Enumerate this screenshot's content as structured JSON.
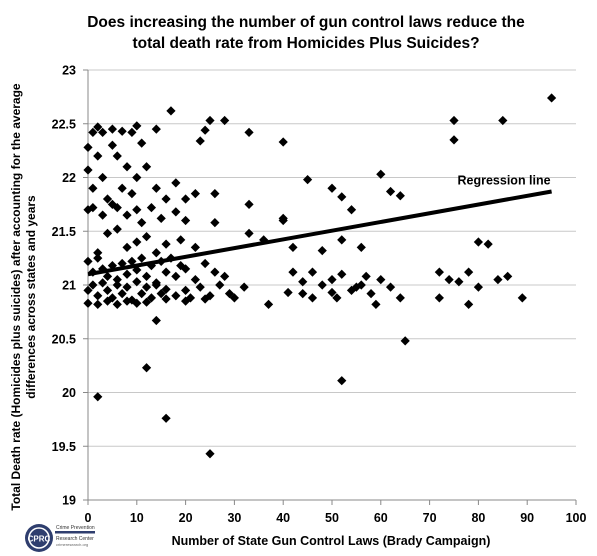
{
  "chart_data": {
    "type": "scatter",
    "title_line1": "Does increasing the number of gun control laws reduce the",
    "title_line2": "total death rate from Homicides Plus Suicides?",
    "xlabel": "Number of State Gun Control Laws (Brady Campaign)",
    "ylabel_line1": "Total Death rate (Homicides plus suicides) after accounting for the average",
    "ylabel_line2": "differences across states and years",
    "xlim": [
      0,
      100
    ],
    "ylim": [
      19,
      23
    ],
    "x_ticks": [
      0,
      10,
      20,
      30,
      40,
      50,
      60,
      70,
      80,
      90,
      100
    ],
    "y_ticks": [
      19,
      19.5,
      20,
      20.5,
      21,
      21.5,
      22,
      22.5,
      23
    ],
    "y_tick_labels": [
      "19",
      "19.5",
      "20",
      "20.5",
      "21",
      "21.5",
      "22",
      "22.5",
      "23"
    ],
    "grid": "horizontal",
    "marker_color": "#000000",
    "regression": {
      "label": "Regression line",
      "x": [
        0,
        95
      ],
      "y": [
        21.1,
        21.87
      ]
    },
    "points": [
      [
        2,
        19.96
      ],
      [
        12,
        20.23
      ],
      [
        14,
        20.67
      ],
      [
        16,
        19.76
      ],
      [
        25,
        19.43
      ],
      [
        52,
        20.11
      ],
      [
        65,
        20.48
      ],
      [
        0,
        22.28
      ],
      [
        1,
        22.42
      ],
      [
        2,
        22.47
      ],
      [
        3,
        22.42
      ],
      [
        5,
        22.45
      ],
      [
        7,
        22.43
      ],
      [
        9,
        22.42
      ],
      [
        10,
        22.48
      ],
      [
        11,
        22.32
      ],
      [
        14,
        22.45
      ],
      [
        17,
        22.62
      ],
      [
        23,
        22.34
      ],
      [
        24,
        22.44
      ],
      [
        25,
        22.53
      ],
      [
        28,
        22.53
      ],
      [
        33,
        22.42
      ],
      [
        40,
        22.33
      ],
      [
        0,
        22.07
      ],
      [
        1,
        21.9
      ],
      [
        2,
        22.2
      ],
      [
        3,
        22.0
      ],
      [
        4,
        21.8
      ],
      [
        5,
        22.3
      ],
      [
        6,
        22.2
      ],
      [
        7,
        21.9
      ],
      [
        8,
        22.1
      ],
      [
        9,
        21.85
      ],
      [
        10,
        22.0
      ],
      [
        12,
        22.1
      ],
      [
        14,
        21.9
      ],
      [
        16,
        21.8
      ],
      [
        18,
        21.95
      ],
      [
        20,
        21.8
      ],
      [
        22,
        21.85
      ],
      [
        26,
        21.85
      ],
      [
        33,
        21.75
      ],
      [
        40,
        21.62
      ],
      [
        45,
        21.98
      ],
      [
        50,
        21.9
      ],
      [
        52,
        21.82
      ],
      [
        60,
        22.03
      ],
      [
        62,
        21.87
      ],
      [
        64,
        21.83
      ],
      [
        0,
        21.7
      ],
      [
        1,
        21.72
      ],
      [
        3,
        21.65
      ],
      [
        5,
        21.75
      ],
      [
        6,
        21.72
      ],
      [
        8,
        21.65
      ],
      [
        10,
        21.7
      ],
      [
        11,
        21.58
      ],
      [
        13,
        21.72
      ],
      [
        15,
        21.62
      ],
      [
        18,
        21.68
      ],
      [
        20,
        21.6
      ],
      [
        26,
        21.58
      ],
      [
        40,
        21.6
      ],
      [
        54,
        21.7
      ],
      [
        2,
        21.3
      ],
      [
        4,
        21.48
      ],
      [
        6,
        21.52
      ],
      [
        8,
        21.35
      ],
      [
        10,
        21.4
      ],
      [
        12,
        21.45
      ],
      [
        14,
        21.3
      ],
      [
        16,
        21.38
      ],
      [
        19,
        21.42
      ],
      [
        22,
        21.35
      ],
      [
        33,
        21.48
      ],
      [
        36,
        21.42
      ],
      [
        42,
        21.35
      ],
      [
        48,
        21.32
      ],
      [
        52,
        21.42
      ],
      [
        56,
        21.35
      ],
      [
        80,
        21.4
      ],
      [
        82,
        21.38
      ],
      [
        0,
        21.22
      ],
      [
        1,
        21.12
      ],
      [
        2,
        21.25
      ],
      [
        3,
        21.15
      ],
      [
        4,
        21.08
      ],
      [
        5,
        21.18
      ],
      [
        6,
        21.05
      ],
      [
        7,
        21.2
      ],
      [
        8,
        21.1
      ],
      [
        9,
        21.22
      ],
      [
        10,
        21.14
      ],
      [
        11,
        21.25
      ],
      [
        12,
        21.08
      ],
      [
        13,
        21.18
      ],
      [
        14,
        21.02
      ],
      [
        15,
        21.22
      ],
      [
        16,
        21.12
      ],
      [
        17,
        21.25
      ],
      [
        18,
        21.08
      ],
      [
        19,
        21.18
      ],
      [
        20,
        21.15
      ],
      [
        22,
        21.05
      ],
      [
        24,
        21.2
      ],
      [
        26,
        21.12
      ],
      [
        28,
        21.08
      ],
      [
        0,
        20.95
      ],
      [
        1,
        21.0
      ],
      [
        2,
        20.9
      ],
      [
        3,
        21.02
      ],
      [
        4,
        20.95
      ],
      [
        5,
        20.88
      ],
      [
        6,
        21.0
      ],
      [
        7,
        20.92
      ],
      [
        8,
        20.98
      ],
      [
        9,
        20.86
      ],
      [
        10,
        21.03
      ],
      [
        11,
        20.92
      ],
      [
        12,
        20.98
      ],
      [
        13,
        20.88
      ],
      [
        14,
        21.0
      ],
      [
        15,
        20.92
      ],
      [
        16,
        20.96
      ],
      [
        18,
        20.9
      ],
      [
        20,
        20.95
      ],
      [
        21,
        20.88
      ],
      [
        23,
        20.98
      ],
      [
        25,
        20.9
      ],
      [
        27,
        21.0
      ],
      [
        29,
        20.92
      ],
      [
        30,
        20.88
      ],
      [
        32,
        20.98
      ],
      [
        0,
        20.83
      ],
      [
        2,
        20.82
      ],
      [
        4,
        20.85
      ],
      [
        6,
        20.82
      ],
      [
        8,
        20.85
      ],
      [
        10,
        20.83
      ],
      [
        12,
        20.84
      ],
      [
        16,
        20.87
      ],
      [
        20,
        20.85
      ],
      [
        24,
        20.87
      ],
      [
        42,
        21.12
      ],
      [
        44,
        21.03
      ],
      [
        46,
        21.12
      ],
      [
        48,
        21.0
      ],
      [
        50,
        21.05
      ],
      [
        52,
        21.1
      ],
      [
        54,
        20.95
      ],
      [
        56,
        21.0
      ],
      [
        58,
        20.92
      ],
      [
        60,
        21.05
      ],
      [
        62,
        20.98
      ],
      [
        64,
        20.88
      ],
      [
        55,
        20.98
      ],
      [
        57,
        21.08
      ],
      [
        44,
        20.92
      ],
      [
        46,
        20.88
      ],
      [
        50,
        20.93
      ],
      [
        37,
        20.82
      ],
      [
        41,
        20.93
      ],
      [
        51,
        20.88
      ],
      [
        59,
        20.82
      ],
      [
        72,
        20.88
      ],
      [
        78,
        20.82
      ],
      [
        89,
        20.88
      ],
      [
        72,
        21.12
      ],
      [
        74,
        21.05
      ],
      [
        76,
        21.03
      ],
      [
        78,
        21.12
      ],
      [
        80,
        20.98
      ],
      [
        84,
        21.05
      ],
      [
        86,
        21.08
      ],
      [
        75,
        22.35
      ],
      [
        75,
        22.53
      ],
      [
        85,
        22.53
      ],
      [
        95,
        22.74
      ]
    ]
  }
}
